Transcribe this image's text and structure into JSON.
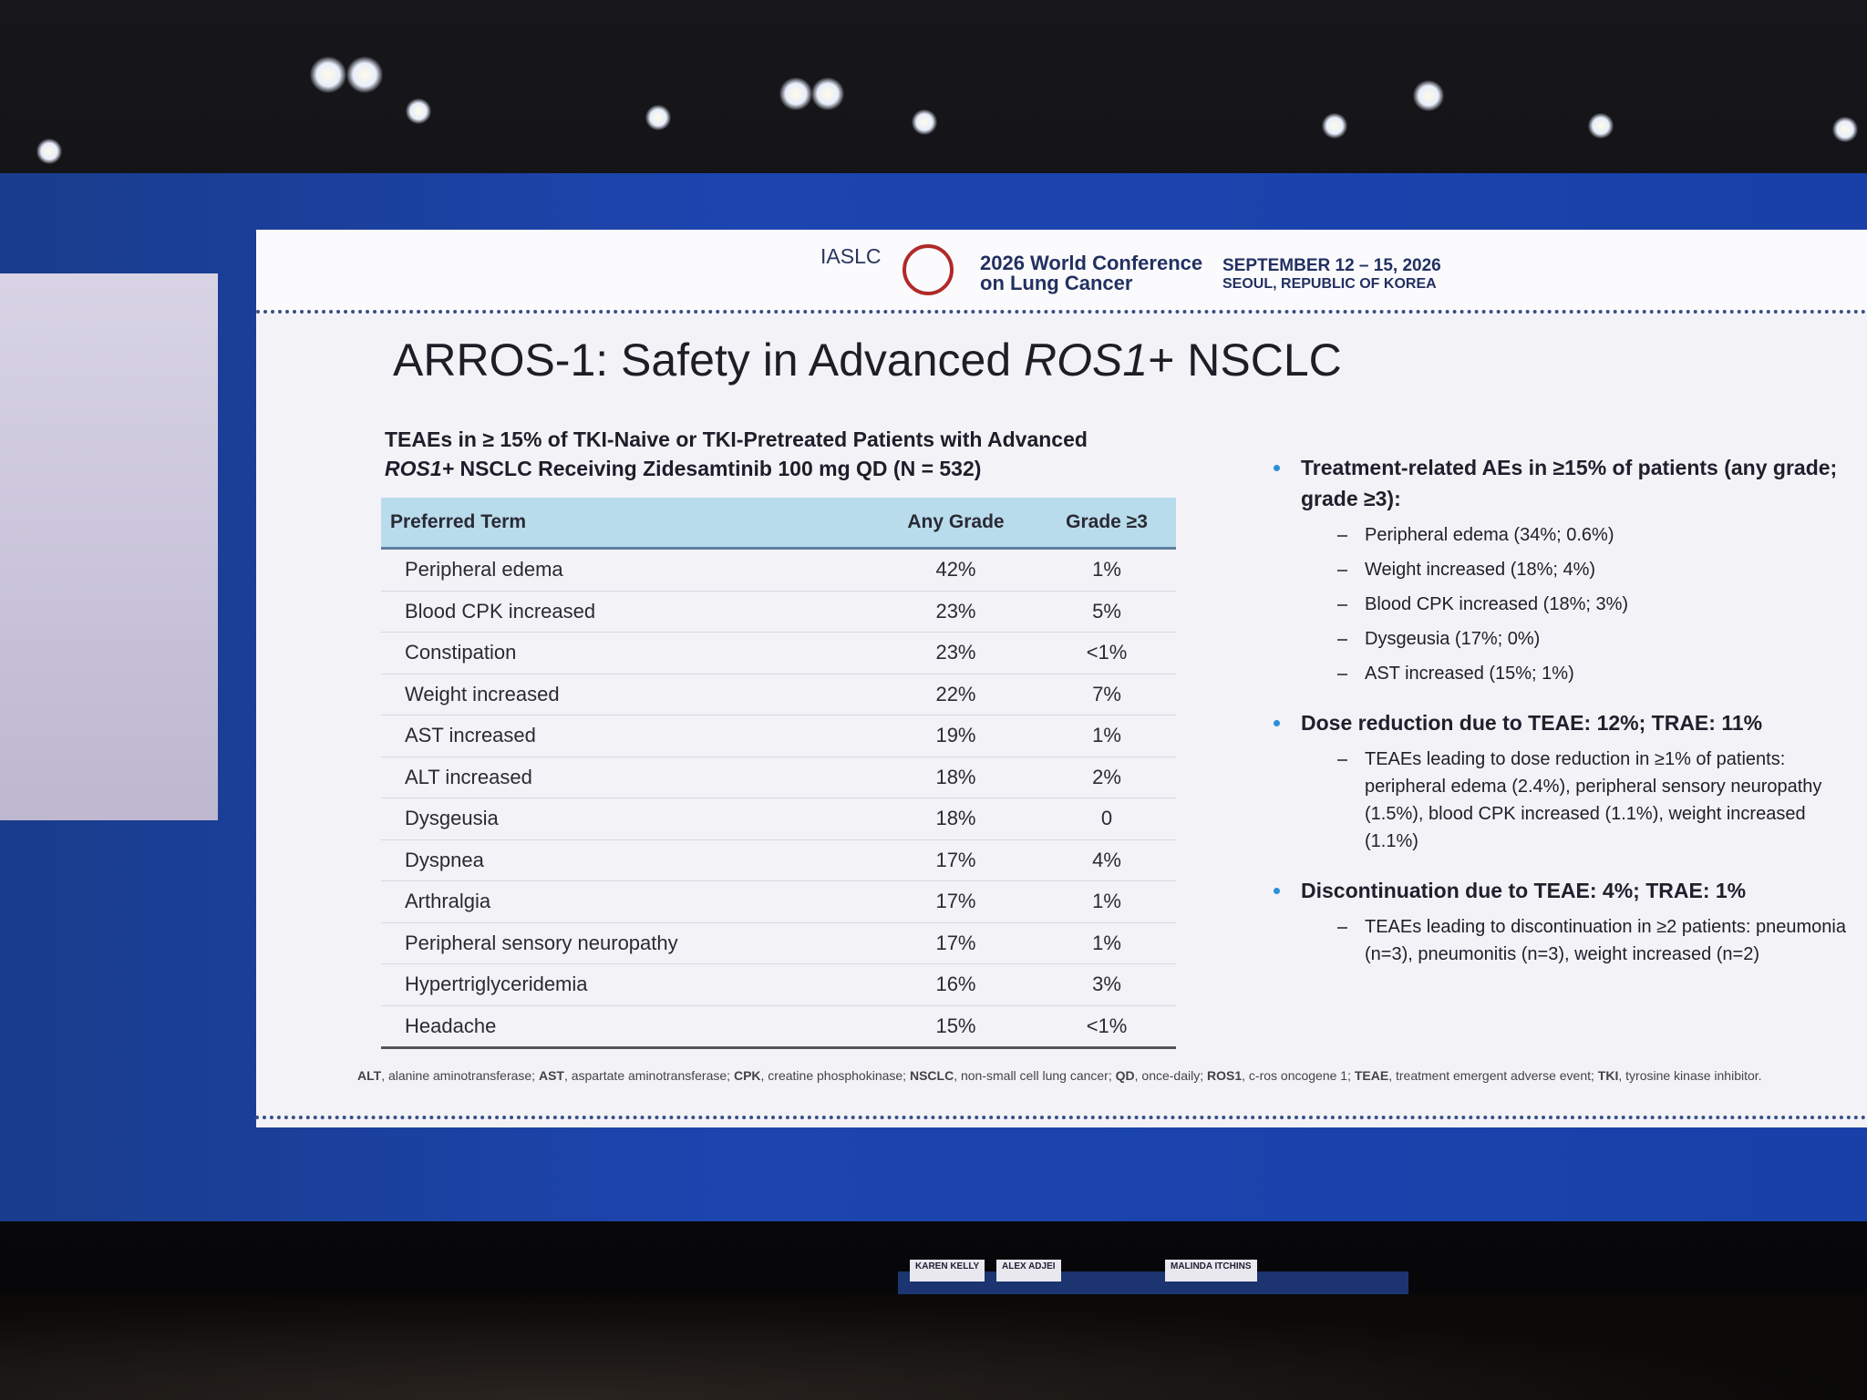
{
  "header": {
    "org": "IASLC",
    "conference": [
      "2026 World Conference",
      "on Lung Cancer"
    ],
    "dates": "SEPTEMBER 12 – 15, 2026",
    "location": "SEOUL, REPUBLIC OF KOREA"
  },
  "slide": {
    "title": [
      "ARROS-1: Safety in Advanced ",
      "ROS1",
      "+ NSCLC"
    ],
    "table_caption": [
      "TEAEs in ≥ 15% of TKI-Naive or TKI-Pretreated Patients with Advanced",
      "ROS1+",
      " NSCLC Receiving Zidesamtinib 100 mg QD (N = 532)"
    ],
    "table": {
      "header": [
        "Preferred Term",
        "Any Grade",
        "Grade ≥3"
      ],
      "rows": [
        [
          "Peripheral edema",
          "42%",
          "1%"
        ],
        [
          "Blood CPK increased",
          "23%",
          "5%"
        ],
        [
          "Constipation",
          "23%",
          "<1%"
        ],
        [
          "Weight increased",
          "22%",
          "7%"
        ],
        [
          "AST increased",
          "19%",
          "1%"
        ],
        [
          "ALT increased",
          "18%",
          "2%"
        ],
        [
          "Dysgeusia",
          "18%",
          "0"
        ],
        [
          "Dyspnea",
          "17%",
          "4%"
        ],
        [
          "Arthralgia",
          "17%",
          "1%"
        ],
        [
          "Peripheral sensory neuropathy",
          "17%",
          "1%"
        ],
        [
          "Hypertriglyceridemia",
          "16%",
          "3%"
        ],
        [
          "Headache",
          "15%",
          "<1%"
        ]
      ]
    },
    "bullets": [
      {
        "text": "Treatment-related AEs in ≥15% of patients (any grade; grade ≥3):",
        "subs": [
          "Peripheral edema (34%; 0.6%)",
          "Weight increased (18%; 4%)",
          "Blood CPK increased (18%; 3%)",
          "Dysgeusia (17%; 0%)",
          "AST increased (15%; 1%)"
        ]
      },
      {
        "text": "Dose reduction due to TEAE: 12%; TRAE: 11%",
        "subs": [
          "TEAEs leading to dose reduction in ≥1% of patients: peripheral edema (2.4%), peripheral sensory neuropathy (1.5%), blood CPK increased (1.1%), weight increased (1.1%)"
        ]
      },
      {
        "text": "Discontinuation due to TEAE: 4%; TRAE: 1%",
        "subs": [
          "TEAEs leading to discontinuation in ≥2 patients: pneumonia (n=3), pneumonitis (n=3), weight increased (n=2)"
        ]
      }
    ],
    "footnote": [
      [
        "ALT",
        ", alanine aminotransferase; "
      ],
      [
        "AST",
        ", aspartate aminotransferase; "
      ],
      [
        "CPK",
        ", creatine phosphokinase; "
      ],
      [
        "NSCLC",
        ", non-small cell lung cancer; "
      ],
      [
        "QD",
        ", once-daily; "
      ],
      [
        "ROS1",
        ", c-ros oncogene 1; "
      ],
      [
        "TEAE",
        ", treatment emergent adverse event; "
      ],
      [
        "TKI",
        ", tyrosine kinase inhibitor."
      ]
    ]
  },
  "panel": {
    "nameplates": [
      "KAREN KELLY",
      "ALEX ADJEI",
      "MALINDA ITCHINS"
    ]
  }
}
